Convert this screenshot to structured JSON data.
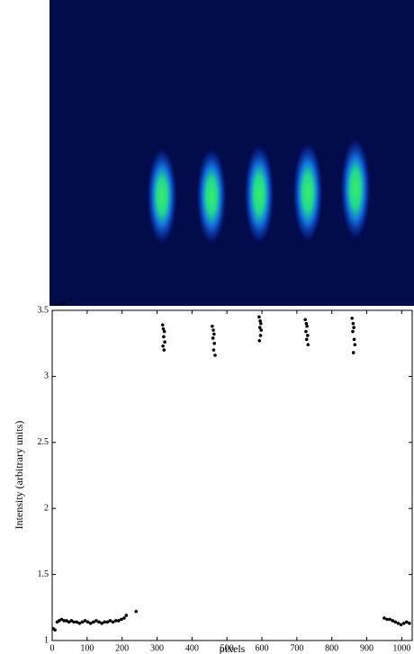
{
  "chart_data": {
    "type": "scatter",
    "x_label": "pixels",
    "y_label": "Intensity (arbitrary units)",
    "y_scale_label": "x 10",
    "y_scale_exponent": "4",
    "color": "#000000",
    "xlim": [
      0,
      1030
    ],
    "ylim": [
      1,
      3.5
    ],
    "xticks": [
      0,
      100,
      200,
      300,
      400,
      500,
      600,
      700,
      800,
      900,
      1000
    ],
    "yticks": [
      1,
      1.5,
      2,
      2.5,
      3,
      3.5
    ],
    "series": [
      {
        "name": null,
        "color": "#000000",
        "x": [
          3,
          8,
          14,
          20,
          27,
          34,
          41,
          48,
          55,
          62,
          70,
          78,
          86,
          94,
          102,
          110,
          118,
          126,
          134,
          142,
          150,
          158,
          166,
          174,
          182,
          190,
          198,
          206,
          212,
          240,
          316,
          318,
          321,
          319,
          322,
          317,
          320,
          458,
          461,
          463,
          460,
          464,
          462,
          466,
          592,
          595,
          597,
          594,
          598,
          596,
          593,
          724,
          727,
          729,
          726,
          731,
          728,
          732,
          858,
          861,
          863,
          860,
          864,
          866,
          862,
          950,
          958,
          966,
          974,
          982,
          990,
          998,
          1006,
          1014,
          1022
        ],
        "values": [
          1.09,
          1.08,
          1.14,
          1.15,
          1.16,
          1.15,
          1.15,
          1.14,
          1.15,
          1.14,
          1.14,
          1.13,
          1.14,
          1.15,
          1.14,
          1.13,
          1.14,
          1.15,
          1.14,
          1.13,
          1.14,
          1.14,
          1.15,
          1.14,
          1.15,
          1.15,
          1.16,
          1.17,
          1.19,
          1.22,
          3.39,
          3.36,
          3.34,
          3.3,
          3.26,
          3.23,
          3.2,
          3.38,
          3.35,
          3.32,
          3.29,
          3.25,
          3.2,
          3.16,
          3.45,
          3.42,
          3.4,
          3.37,
          3.35,
          3.31,
          3.27,
          3.43,
          3.4,
          3.38,
          3.34,
          3.31,
          3.28,
          3.24,
          3.44,
          3.4,
          3.37,
          3.34,
          3.28,
          3.24,
          3.18,
          1.17,
          1.16,
          1.16,
          1.15,
          1.14,
          1.13,
          1.12,
          1.13,
          1.14,
          1.13
        ]
      }
    ]
  }
}
